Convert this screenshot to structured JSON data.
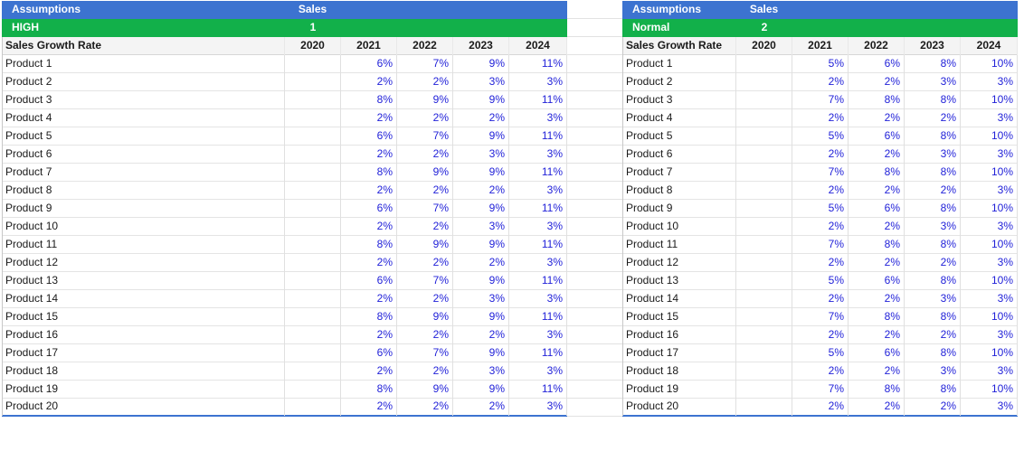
{
  "left": {
    "header_title": "Assumptions",
    "header_sales": "Sales",
    "scenario_name": "HIGH",
    "scenario_number": "1",
    "table_label": "Sales Growth Rate",
    "years": [
      "2020",
      "2021",
      "2022",
      "2023",
      "2024"
    ],
    "rows": [
      {
        "name": "Product 1",
        "values": [
          "",
          "6%",
          "7%",
          "9%",
          "11%"
        ]
      },
      {
        "name": "Product 2",
        "values": [
          "",
          "2%",
          "2%",
          "3%",
          "3%"
        ]
      },
      {
        "name": "Product 3",
        "values": [
          "",
          "8%",
          "9%",
          "9%",
          "11%"
        ]
      },
      {
        "name": "Product 4",
        "values": [
          "",
          "2%",
          "2%",
          "2%",
          "3%"
        ]
      },
      {
        "name": "Product 5",
        "values": [
          "",
          "6%",
          "7%",
          "9%",
          "11%"
        ]
      },
      {
        "name": "Product 6",
        "values": [
          "",
          "2%",
          "2%",
          "3%",
          "3%"
        ]
      },
      {
        "name": "Product 7",
        "values": [
          "",
          "8%",
          "9%",
          "9%",
          "11%"
        ]
      },
      {
        "name": "Product 8",
        "values": [
          "",
          "2%",
          "2%",
          "2%",
          "3%"
        ]
      },
      {
        "name": "Product 9",
        "values": [
          "",
          "6%",
          "7%",
          "9%",
          "11%"
        ]
      },
      {
        "name": "Product 10",
        "values": [
          "",
          "2%",
          "2%",
          "3%",
          "3%"
        ]
      },
      {
        "name": "Product 11",
        "values": [
          "",
          "8%",
          "9%",
          "9%",
          "11%"
        ]
      },
      {
        "name": "Product 12",
        "values": [
          "",
          "2%",
          "2%",
          "2%",
          "3%"
        ]
      },
      {
        "name": "Product 13",
        "values": [
          "",
          "6%",
          "7%",
          "9%",
          "11%"
        ]
      },
      {
        "name": "Product 14",
        "values": [
          "",
          "2%",
          "2%",
          "3%",
          "3%"
        ]
      },
      {
        "name": "Product 15",
        "values": [
          "",
          "8%",
          "9%",
          "9%",
          "11%"
        ]
      },
      {
        "name": "Product 16",
        "values": [
          "",
          "2%",
          "2%",
          "2%",
          "3%"
        ]
      },
      {
        "name": "Product 17",
        "values": [
          "",
          "6%",
          "7%",
          "9%",
          "11%"
        ]
      },
      {
        "name": "Product 18",
        "values": [
          "",
          "2%",
          "2%",
          "3%",
          "3%"
        ]
      },
      {
        "name": "Product 19",
        "values": [
          "",
          "8%",
          "9%",
          "9%",
          "11%"
        ]
      },
      {
        "name": "Product 20",
        "values": [
          "",
          "2%",
          "2%",
          "2%",
          "3%"
        ]
      }
    ]
  },
  "right": {
    "header_title": "Assumptions",
    "header_sales": "Sales",
    "scenario_name": "Normal",
    "scenario_number": "2",
    "table_label": "Sales Growth Rate",
    "years": [
      "2020",
      "2021",
      "2022",
      "2023",
      "2024"
    ],
    "rows": [
      {
        "name": "Product 1",
        "values": [
          "",
          "5%",
          "6%",
          "8%",
          "10%"
        ]
      },
      {
        "name": "Product 2",
        "values": [
          "",
          "2%",
          "2%",
          "3%",
          "3%"
        ]
      },
      {
        "name": "Product 3",
        "values": [
          "",
          "7%",
          "8%",
          "8%",
          "10%"
        ]
      },
      {
        "name": "Product 4",
        "values": [
          "",
          "2%",
          "2%",
          "2%",
          "3%"
        ]
      },
      {
        "name": "Product 5",
        "values": [
          "",
          "5%",
          "6%",
          "8%",
          "10%"
        ]
      },
      {
        "name": "Product 6",
        "values": [
          "",
          "2%",
          "2%",
          "3%",
          "3%"
        ]
      },
      {
        "name": "Product 7",
        "values": [
          "",
          "7%",
          "8%",
          "8%",
          "10%"
        ]
      },
      {
        "name": "Product 8",
        "values": [
          "",
          "2%",
          "2%",
          "2%",
          "3%"
        ]
      },
      {
        "name": "Product 9",
        "values": [
          "",
          "5%",
          "6%",
          "8%",
          "10%"
        ]
      },
      {
        "name": "Product 10",
        "values": [
          "",
          "2%",
          "2%",
          "3%",
          "3%"
        ]
      },
      {
        "name": "Product 11",
        "values": [
          "",
          "7%",
          "8%",
          "8%",
          "10%"
        ]
      },
      {
        "name": "Product 12",
        "values": [
          "",
          "2%",
          "2%",
          "2%",
          "3%"
        ]
      },
      {
        "name": "Product 13",
        "values": [
          "",
          "5%",
          "6%",
          "8%",
          "10%"
        ]
      },
      {
        "name": "Product 14",
        "values": [
          "",
          "2%",
          "2%",
          "3%",
          "3%"
        ]
      },
      {
        "name": "Product 15",
        "values": [
          "",
          "7%",
          "8%",
          "8%",
          "10%"
        ]
      },
      {
        "name": "Product 16",
        "values": [
          "",
          "2%",
          "2%",
          "2%",
          "3%"
        ]
      },
      {
        "name": "Product 17",
        "values": [
          "",
          "5%",
          "6%",
          "8%",
          "10%"
        ]
      },
      {
        "name": "Product 18",
        "values": [
          "",
          "2%",
          "2%",
          "3%",
          "3%"
        ]
      },
      {
        "name": "Product 19",
        "values": [
          "",
          "7%",
          "8%",
          "8%",
          "10%"
        ]
      },
      {
        "name": "Product 20",
        "values": [
          "",
          "2%",
          "2%",
          "2%",
          "3%"
        ]
      }
    ]
  },
  "colors": {
    "header_blue": "#3c73d0",
    "scenario_green": "#12b04a",
    "value_text": "#1f1fd8"
  }
}
